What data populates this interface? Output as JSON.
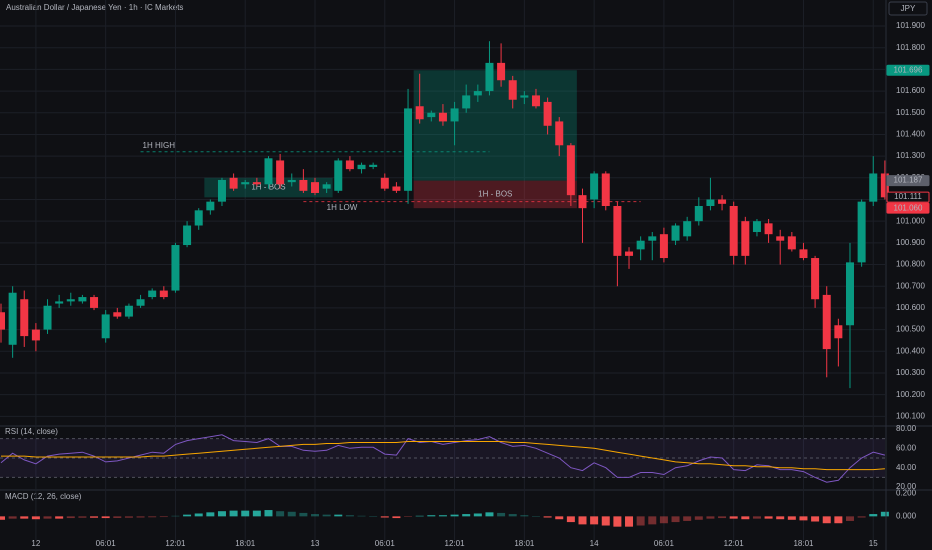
{
  "chart_data": {
    "type": "candlestick",
    "title": "Australian Dollar / Japanese Yen · 1h · IC Markets",
    "currency": "JPY",
    "categories": [
      null,
      null,
      null,
      "12",
      null,
      null,
      null,
      null,
      null,
      "06:01",
      null,
      null,
      null,
      null,
      null,
      "12:01",
      null,
      null,
      null,
      null,
      null,
      "18:01",
      null,
      null,
      null,
      null,
      null,
      "13",
      null,
      null,
      null,
      null,
      null,
      "06:01",
      null,
      null,
      null,
      null,
      null,
      "12:01",
      null,
      null,
      null,
      null,
      null,
      "18:01",
      null,
      null,
      null,
      null,
      null,
      "14",
      null,
      null,
      null,
      null,
      null,
      "06:01",
      null,
      null,
      null,
      null,
      null,
      "12:01",
      null,
      null,
      null,
      null,
      null,
      "18:01",
      null,
      null,
      null,
      null,
      null,
      "15",
      null
    ],
    "open": [
      100.58,
      100.43,
      100.64,
      100.5,
      100.5,
      100.62,
      100.63,
      100.63,
      100.65,
      100.46,
      100.58,
      100.56,
      100.61,
      100.65,
      100.68,
      100.68,
      100.89,
      100.98,
      101.05,
      101.09,
      101.2,
      101.17,
      101.18,
      101.17,
      101.28,
      101.18,
      101.19,
      101.18,
      101.15,
      101.14,
      101.28,
      101.24,
      101.25,
      101.2,
      101.16,
      101.14,
      101.53,
      101.48,
      101.5,
      101.46,
      101.52,
      101.58,
      101.6,
      101.73,
      101.65,
      101.57,
      101.58,
      101.55,
      101.46,
      101.35,
      101.12,
      101.1,
      101.22,
      101.07,
      100.86,
      100.87,
      100.91,
      100.94,
      100.91,
      100.93,
      101.0,
      101.07,
      101.1,
      101.07,
      101.0,
      100.95,
      100.99,
      100.93,
      100.93,
      100.87,
      100.83,
      100.66,
      100.52,
      100.52,
      100.81,
      101.09,
      101.22
    ],
    "high": [
      100.62,
      100.7,
      100.68,
      100.53,
      100.64,
      100.66,
      100.67,
      100.66,
      100.66,
      100.59,
      100.6,
      100.62,
      100.66,
      100.69,
      100.7,
      100.9,
      101.0,
      101.06,
      101.1,
      101.2,
      101.22,
      101.19,
      101.2,
      101.3,
      101.31,
      101.22,
      101.24,
      101.2,
      101.18,
      101.29,
      101.3,
      101.27,
      101.27,
      101.22,
      101.18,
      101.61,
      101.68,
      101.51,
      101.54,
      101.55,
      101.63,
      101.63,
      101.83,
      101.82,
      101.67,
      101.6,
      101.61,
      101.57,
      101.48,
      101.36,
      101.15,
      101.23,
      101.23,
      101.09,
      100.88,
      100.93,
      100.95,
      100.97,
      100.99,
      101.02,
      101.11,
      101.2,
      101.12,
      101.09,
      101.02,
      101.01,
      101.01,
      100.96,
      100.95,
      100.9,
      100.84,
      100.7,
      100.55,
      100.9,
      101.1,
      101.3,
      101.28
    ],
    "low": [
      100.44,
      100.37,
      100.42,
      100.4,
      100.48,
      100.6,
      100.61,
      100.62,
      100.59,
      100.44,
      100.55,
      100.55,
      100.6,
      100.64,
      100.64,
      100.67,
      100.88,
      100.96,
      101.03,
      101.07,
      101.14,
      101.15,
      101.16,
      101.15,
      101.15,
      101.16,
      101.13,
      101.12,
      101.13,
      101.13,
      101.23,
      101.22,
      101.24,
      101.14,
      101.13,
      101.08,
      101.45,
      101.46,
      101.44,
      101.35,
      101.5,
      101.55,
      101.58,
      101.62,
      101.52,
      101.54,
      101.52,
      101.4,
      101.3,
      101.07,
      100.9,
      101.06,
      101.05,
      100.7,
      100.78,
      100.82,
      100.82,
      100.81,
      100.89,
      100.91,
      100.98,
      101.05,
      101.05,
      100.8,
      100.8,
      100.93,
      100.9,
      100.8,
      100.86,
      100.82,
      100.6,
      100.28,
      100.33,
      100.23,
      100.79,
      101.07,
      101.1
    ],
    "close": [
      100.5,
      100.67,
      100.47,
      100.45,
      100.61,
      100.63,
      100.64,
      100.65,
      100.6,
      100.57,
      100.56,
      100.61,
      100.64,
      100.68,
      100.65,
      100.89,
      100.98,
      101.05,
      101.09,
      101.19,
      101.15,
      101.18,
      101.17,
      101.29,
      101.17,
      101.19,
      101.14,
      101.13,
      101.17,
      101.28,
      101.24,
      101.26,
      101.26,
      101.15,
      101.14,
      101.52,
      101.47,
      101.5,
      101.46,
      101.52,
      101.58,
      101.6,
      101.73,
      101.65,
      101.56,
      101.58,
      101.53,
      101.44,
      101.35,
      101.12,
      101.06,
      101.22,
      101.07,
      100.84,
      100.84,
      100.91,
      100.93,
      100.83,
      100.98,
      101.0,
      101.07,
      101.1,
      101.08,
      100.84,
      100.84,
      101.0,
      100.94,
      100.91,
      100.87,
      100.83,
      100.64,
      100.41,
      100.46,
      100.81,
      101.09,
      101.22,
      101.11
    ],
    "up_color": "#089981",
    "down_color": "#f23645",
    "ylim": [
      100.06,
      102.02
    ],
    "yticks": [
      {
        "value": 100.1,
        "label": "100.100"
      },
      {
        "value": 100.2,
        "label": "100.200"
      },
      {
        "value": 100.3,
        "label": "100.300"
      },
      {
        "value": 100.4,
        "label": "100.400"
      },
      {
        "value": 100.5,
        "label": "100.500"
      },
      {
        "value": 100.6,
        "label": "100.600"
      },
      {
        "value": 100.7,
        "label": "100.700"
      },
      {
        "value": 100.8,
        "label": "100.800"
      },
      {
        "value": 100.9,
        "label": "100.900"
      },
      {
        "value": 101.0,
        "label": "101.000"
      },
      {
        "value": 101.1,
        "label": "101.100"
      },
      {
        "value": 101.2,
        "label": "101.200"
      },
      {
        "value": 101.3,
        "label": "101.300"
      },
      {
        "value": 101.4,
        "label": "101.400"
      },
      {
        "value": 101.5,
        "label": "101.500"
      },
      {
        "value": 101.6,
        "label": "101.600"
      },
      {
        "value": 101.7,
        "label": "101.700"
      },
      {
        "value": 101.8,
        "label": "101.800"
      },
      {
        "value": 101.9,
        "label": "101.900"
      }
    ],
    "grid": true,
    "zones": [
      {
        "label": "1H - BOS",
        "top": 101.2,
        "bottom": 101.11,
        "from": 18,
        "to": 28,
        "color": "#089981"
      },
      {
        "top": 101.696,
        "bottom": 101.187,
        "from": 36,
        "to": 49,
        "color": "#089981"
      },
      {
        "label": "1H - BOS",
        "top": 101.187,
        "bottom": 101.06,
        "from": 36,
        "to": 49,
        "color": "#f23645"
      }
    ],
    "levels": [
      {
        "label": "1H HIGH",
        "value": 101.32,
        "from": 12,
        "to": 42,
        "color": "#089981"
      },
      {
        "label": "1H LOW",
        "value": 101.09,
        "from": 26,
        "to": 55,
        "color": "#f23645"
      }
    ],
    "price_labels": [
      {
        "price": 101.696,
        "color": "#089981",
        "style": "filled"
      },
      {
        "price": 101.187,
        "color": "#5d606b",
        "style": "filled"
      },
      {
        "price": 101.111,
        "color": "#f23645",
        "style": "outline"
      },
      {
        "price": {
          "value": 101.06,
          "label": "101.060"
        },
        "color": "#f23645",
        "style": "filled"
      }
    ],
    "rsi": {
      "title": "RSI (14, close)",
      "values": [
        45,
        55,
        48,
        44,
        52,
        54,
        55,
        56,
        52,
        46,
        47,
        50,
        53,
        56,
        55,
        64,
        68,
        70,
        72,
        74,
        68,
        67,
        66,
        70,
        62,
        62,
        58,
        57,
        58,
        63,
        60,
        61,
        61,
        54,
        53,
        70,
        66,
        67,
        64,
        66,
        68,
        69,
        72,
        66,
        62,
        63,
        60,
        55,
        50,
        40,
        37,
        45,
        40,
        30,
        30,
        35,
        35,
        33,
        40,
        42,
        47,
        51,
        50,
        38,
        37,
        43,
        42,
        38,
        38,
        36,
        30,
        25,
        27,
        40,
        50,
        56,
        53
      ],
      "ma_values": [
        52,
        52,
        52,
        51,
        51,
        51,
        51,
        51,
        51,
        51,
        51,
        51,
        51,
        52,
        52,
        53,
        54,
        55,
        56,
        57,
        58,
        59,
        60,
        61,
        62,
        63,
        64,
        64,
        65,
        65,
        66,
        66,
        66,
        66,
        66,
        67,
        67,
        67,
        67,
        67,
        67,
        67,
        67,
        67,
        66,
        66,
        65,
        64,
        63,
        62,
        61,
        60,
        58,
        56,
        54,
        52,
        50,
        48,
        46,
        45,
        44,
        44,
        43,
        42,
        42,
        41,
        41,
        40,
        40,
        39,
        39,
        38,
        38,
        38,
        38,
        38,
        39
      ],
      "color": "#7e57c2",
      "ma_color": "#f7a600",
      "levels": [
        70,
        50,
        30
      ],
      "ylim": [
        18,
        82
      ],
      "yticks": [
        {
          "value": 80,
          "label": "80.00"
        },
        {
          "value": 60,
          "label": "60.00"
        },
        {
          "value": 40,
          "label": "40.00"
        },
        {
          "value": 20,
          "label": "20.00"
        }
      ]
    },
    "macd": {
      "title": "MACD (12, 26, close)",
      "histogram": [
        -0.03,
        -0.02,
        -0.02,
        -0.025,
        -0.02,
        -0.02,
        -0.015,
        -0.012,
        -0.012,
        -0.015,
        -0.014,
        -0.012,
        -0.01,
        -0.008,
        -0.006,
        0.005,
        0.015,
        0.025,
        0.035,
        0.045,
        0.05,
        0.05,
        0.05,
        0.055,
        0.045,
        0.04,
        0.03,
        0.02,
        0.015,
        0.015,
        0.01,
        0.005,
        0,
        -0.01,
        -0.015,
        -0.005,
        0.005,
        0.01,
        0.01,
        0.015,
        0.02,
        0.025,
        0.035,
        0.03,
        0.02,
        0.01,
        0,
        -0.01,
        -0.025,
        -0.05,
        -0.07,
        -0.07,
        -0.08,
        -0.09,
        -0.09,
        -0.08,
        -0.07,
        -0.06,
        -0.05,
        -0.04,
        -0.03,
        -0.02,
        -0.015,
        -0.02,
        -0.025,
        -0.02,
        -0.02,
        -0.025,
        -0.03,
        -0.035,
        -0.045,
        -0.06,
        -0.06,
        -0.04,
        -0.01,
        0.02,
        0.04
      ],
      "up_color": "#26a69a",
      "down_color": "#ef5350",
      "ylim": [
        -0.25,
        0.23
      ],
      "yticks": [
        {
          "value": 0.2,
          "label": "0.200"
        },
        {
          "value": 0,
          "label": "0.000"
        }
      ]
    }
  }
}
